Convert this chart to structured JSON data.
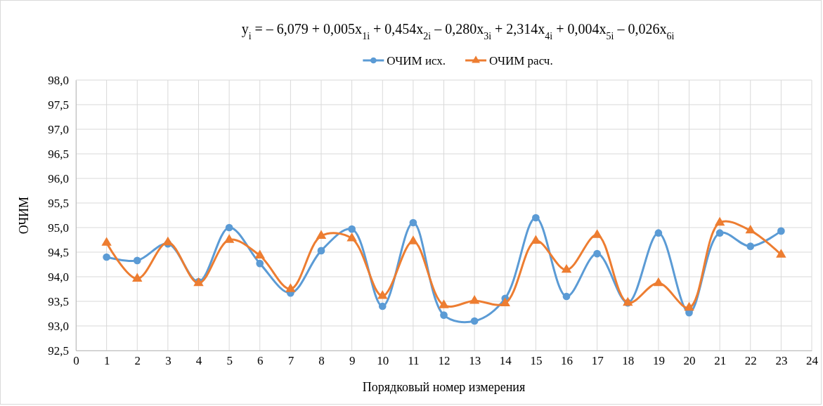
{
  "chart_data": {
    "type": "line",
    "title": "y$_{i}$ = – 6,079 + 0,005x$_{1i}$ + 0,454x$_{2i}$ – 0,280x$_{3i}$ + 2,314x$_{4i}$ + 0,004x$_{5i}$ – 0,026x$_{6i}$",
    "xlabel": "Порядковый номер измерения",
    "ylabel": "ОЧИМ",
    "x": [
      1,
      2,
      3,
      4,
      5,
      6,
      7,
      8,
      9,
      10,
      11,
      12,
      13,
      14,
      15,
      16,
      17,
      18,
      19,
      20,
      21,
      22,
      23
    ],
    "series": [
      {
        "name": "ОЧИМ исх.",
        "color": "#5b9bd5",
        "marker": "circle",
        "values": [
          94.4,
          94.33,
          94.67,
          93.9,
          95.0,
          94.27,
          93.67,
          94.53,
          94.97,
          93.4,
          95.1,
          93.22,
          93.1,
          93.56,
          95.2,
          93.6,
          94.47,
          93.47,
          94.89,
          93.27,
          94.89,
          94.62,
          94.93
        ]
      },
      {
        "name": "ОЧИМ расч.",
        "color": "#ed7d31",
        "marker": "triangle",
        "values": [
          94.69,
          93.96,
          94.7,
          93.87,
          94.75,
          94.43,
          93.75,
          94.83,
          94.78,
          93.61,
          94.72,
          93.42,
          93.51,
          93.46,
          94.73,
          94.14,
          94.85,
          93.47,
          93.87,
          93.37,
          95.1,
          94.94,
          94.45
        ]
      }
    ],
    "xlim": [
      0,
      24
    ],
    "xticks": [
      0,
      1,
      2,
      3,
      4,
      5,
      6,
      7,
      8,
      9,
      10,
      11,
      12,
      13,
      14,
      15,
      16,
      17,
      18,
      19,
      20,
      21,
      22,
      23,
      24
    ],
    "ylim": [
      92.5,
      98
    ],
    "yticks": [
      {
        "value": 92.5,
        "label": "92,5"
      },
      {
        "value": 93,
        "label": "93,0"
      },
      {
        "value": 93.5,
        "label": "93,5"
      },
      {
        "value": 94,
        "label": "94,0"
      },
      {
        "value": 94.5,
        "label": "94,5"
      },
      {
        "value": 95,
        "label": "95,0"
      },
      {
        "value": 95.5,
        "label": "95,5"
      },
      {
        "value": 96,
        "label": "96,0"
      },
      {
        "value": 96.5,
        "label": "96,5"
      },
      {
        "value": 97,
        "label": "97,0"
      },
      {
        "value": 97.5,
        "label": "97,5"
      },
      {
        "value": 98,
        "label": "98,0"
      }
    ],
    "grid": true,
    "legend": "top",
    "line_style": "solid"
  }
}
